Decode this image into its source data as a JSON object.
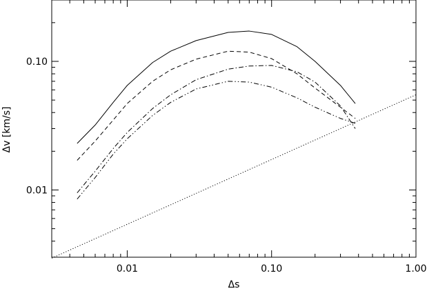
{
  "chart_data": {
    "type": "line",
    "title": "",
    "xlabel": "Δs",
    "ylabel": "Δv [km/s]",
    "x_scale": "log",
    "y_scale": "log",
    "xlim": [
      0.003,
      1.0
    ],
    "ylim": [
      0.003,
      0.3
    ],
    "x_ticks": [
      0.01,
      0.1,
      1.0
    ],
    "x_tick_labels": [
      "0.01",
      "0.10",
      "1.00"
    ],
    "y_ticks": [
      0.01,
      0.1
    ],
    "y_tick_labels": [
      "0.01",
      "0.10"
    ],
    "grid": false,
    "legend": "none",
    "series": [
      {
        "style": "solid",
        "x": [
          0.0045,
          0.006,
          0.008,
          0.01,
          0.015,
          0.02,
          0.03,
          0.05,
          0.07,
          0.1,
          0.15,
          0.2,
          0.3,
          0.38
        ],
        "y": [
          0.023,
          0.032,
          0.048,
          0.065,
          0.098,
          0.12,
          0.145,
          0.168,
          0.172,
          0.162,
          0.13,
          0.1,
          0.065,
          0.047
        ]
      },
      {
        "style": "dashed",
        "x": [
          0.0045,
          0.006,
          0.008,
          0.01,
          0.015,
          0.02,
          0.03,
          0.05,
          0.07,
          0.1,
          0.15,
          0.2,
          0.3,
          0.38
        ],
        "y": [
          0.017,
          0.024,
          0.035,
          0.047,
          0.07,
          0.086,
          0.104,
          0.12,
          0.118,
          0.105,
          0.08,
          0.062,
          0.044,
          0.036
        ]
      },
      {
        "style": "dash-dot",
        "x": [
          0.0045,
          0.006,
          0.008,
          0.01,
          0.015,
          0.02,
          0.03,
          0.05,
          0.07,
          0.1,
          0.15,
          0.2,
          0.3,
          0.38
        ],
        "y": [
          0.0095,
          0.014,
          0.021,
          0.028,
          0.043,
          0.055,
          0.072,
          0.087,
          0.092,
          0.093,
          0.083,
          0.069,
          0.045,
          0.03
        ]
      },
      {
        "style": "dash-dot-dot",
        "x": [
          0.0045,
          0.006,
          0.008,
          0.01,
          0.015,
          0.02,
          0.03,
          0.05,
          0.07,
          0.1,
          0.15,
          0.2,
          0.3,
          0.38
        ],
        "y": [
          0.0085,
          0.0125,
          0.019,
          0.025,
          0.038,
          0.048,
          0.061,
          0.07,
          0.069,
          0.063,
          0.052,
          0.044,
          0.036,
          0.033
        ]
      },
      {
        "style": "dotted",
        "x": [
          0.003,
          1.0
        ],
        "y": [
          0.00295,
          0.055
        ]
      }
    ]
  }
}
